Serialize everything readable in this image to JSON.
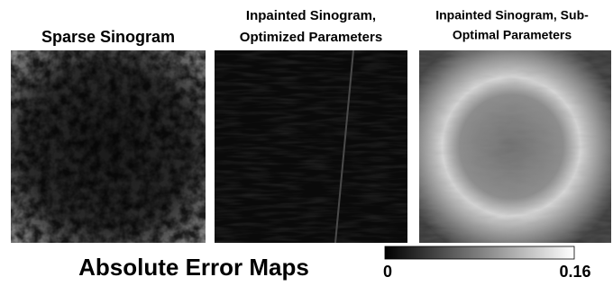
{
  "panels": [
    {
      "title": [
        "Sparse Sinogram"
      ]
    },
    {
      "title": [
        "Inpainted Sinogram,",
        "Optimized Parameters"
      ]
    },
    {
      "title": [
        "Inpainted Sinogram, Sub-",
        "Optimal Parameters"
      ]
    }
  ],
  "caption": "Absolute Error Maps",
  "colorbar": {
    "min": 0,
    "max": 0.16
  }
}
